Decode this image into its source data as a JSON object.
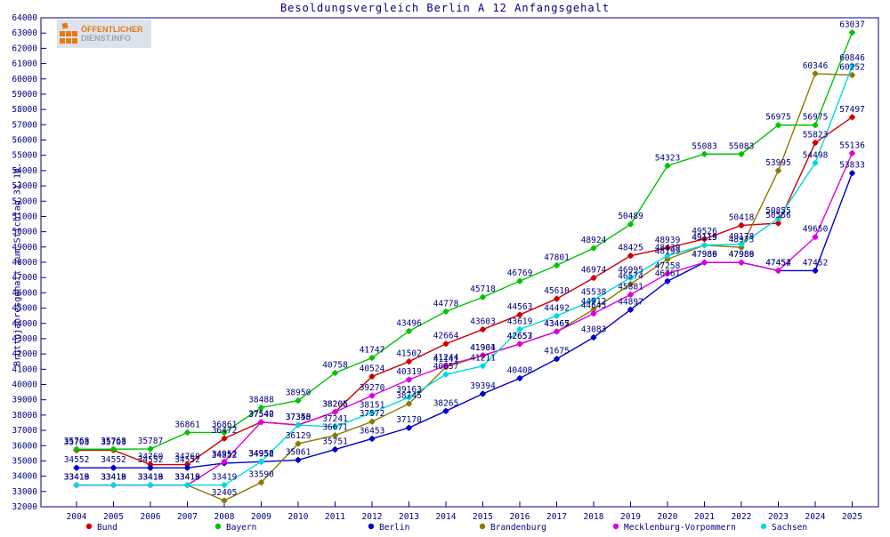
{
  "title": "Besoldungsvergleich Berlin A 12 Anfangsgehalt",
  "logo": {
    "line1": "ÖFFENTLICHER",
    "line2": "DIENST.INFO"
  },
  "colors": {
    "axis_text": "#000082",
    "background": "#ffffff"
  },
  "chart_data": {
    "type": "line",
    "title": "Besoldungsvergleich Berlin A 12 Anfangsgehalt",
    "xlabel": "",
    "ylabel": "Bruttojahresgehalt zum Stichtag 31.10.",
    "ylim": [
      32000,
      64000
    ],
    "ytick_step": 1000,
    "grid": false,
    "legend_position": "bottom",
    "point_labels": true,
    "x": [
      2004,
      2005,
      2006,
      2007,
      2008,
      2009,
      2010,
      2011,
      2012,
      2013,
      2014,
      2015,
      2016,
      2017,
      2018,
      2019,
      2020,
      2021,
      2022,
      2023,
      2024,
      2025
    ],
    "series": [
      {
        "name": "Bund",
        "color": "#d00000",
        "values": [
          35703,
          35703,
          34760,
          34760,
          36472,
          37542,
          37353,
          38205,
          40524,
          41502,
          42664,
          43603,
          44563,
          45610,
          46974,
          48425,
          48939,
          49526,
          50418,
          50556,
          55823,
          57497
        ]
      },
      {
        "name": "Bayern",
        "color": "#00c400",
        "values": [
          35768,
          35768,
          35787,
          36861,
          36861,
          38488,
          38950,
          40758,
          41747,
          43496,
          44778,
          45718,
          46769,
          47801,
          48924,
          50489,
          54323,
          55083,
          55083,
          56975,
          56975,
          63037
        ]
      },
      {
        "name": "Berlin",
        "color": "#0000cd",
        "values": [
          34552,
          34552,
          34552,
          34552,
          34852,
          34952,
          35061,
          35751,
          36453,
          37170,
          38265,
          39394,
          40408,
          41675,
          43083,
          44897,
          46761,
          47986,
          47986,
          47452,
          47452,
          53833
        ]
      },
      {
        "name": "Brandenburg",
        "color": "#8a7a00",
        "values": [
          33413,
          33413,
          33413,
          33413,
          32405,
          33590,
          36129,
          36671,
          37572,
          38745,
          41141,
          41901,
          42657,
          43467,
          44912,
          46574,
          48199,
          49119,
          48973,
          53995,
          60346,
          60252
        ]
      },
      {
        "name": "Mecklenburg-Vorpommern",
        "color": "#dd00dd",
        "values": [
          33418,
          33418,
          33418,
          33418,
          34952,
          37540,
          37358,
          38206,
          39270,
          40319,
          41244,
          41904,
          42653,
          43465,
          44645,
          45881,
          47258,
          47989,
          47989,
          47454,
          49650,
          55136
        ]
      },
      {
        "name": "Sachsen",
        "color": "#00d9e0",
        "values": [
          33419,
          33419,
          33419,
          33419,
          33419,
          34958,
          37340,
          37241,
          38151,
          39163,
          40657,
          41211,
          43619,
          44492,
          45538,
          46995,
          48439,
          49115,
          49178,
          50855,
          54498,
          60846
        ]
      }
    ]
  }
}
